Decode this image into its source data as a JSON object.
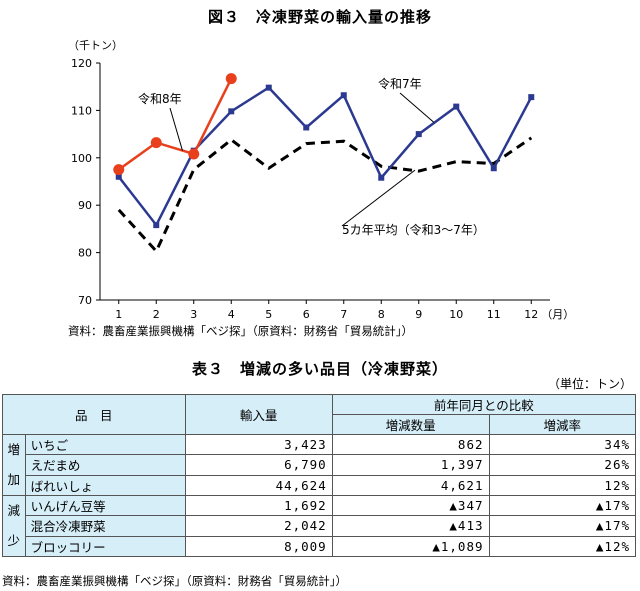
{
  "figure": {
    "title": "図３　冷凍野菜の輸入量の推移",
    "unit": "（千トン）",
    "source": "資料：農畜産業振興機構「ベジ探」（原資料：財務省「貿易統計」）"
  },
  "chart_data": {
    "type": "line",
    "x": [
      1,
      2,
      3,
      4,
      5,
      6,
      7,
      8,
      9,
      10,
      11,
      12
    ],
    "x_suffix": "（月）",
    "ylim": [
      70,
      120
    ],
    "yticks": [
      70,
      80,
      90,
      100,
      110,
      120
    ],
    "series": [
      {
        "name": "令和8年",
        "color": "#e8401c",
        "style": "solid-dots",
        "values": [
          97.5,
          103.2,
          100.8,
          116.7,
          null,
          null,
          null,
          null,
          null,
          null,
          null,
          null
        ]
      },
      {
        "name": "令和7年",
        "color": "#2b3990",
        "style": "solid-squares",
        "values": [
          96.0,
          85.8,
          101.5,
          109.8,
          114.8,
          106.4,
          113.2,
          95.8,
          105.0,
          110.8,
          97.8,
          112.8
        ]
      },
      {
        "name": "5カ年平均（令和3～7年）",
        "color": "#000000",
        "style": "dashed",
        "values": [
          89.0,
          80.3,
          97.5,
          103.8,
          97.8,
          103.0,
          103.5,
          98.2,
          97.2,
          99.2,
          98.8,
          104.2
        ]
      }
    ]
  },
  "table": {
    "title": "表３　増減の多い品目（冷凍野菜）",
    "unit": "（単位：トン）",
    "headers": {
      "item": "品　目",
      "imports": "輸入量",
      "compare": "前年同月との比較",
      "change_qty": "増減数量",
      "change_rate": "増減率"
    },
    "groups": {
      "increase": [
        "増",
        "加"
      ],
      "decrease": [
        "減",
        "少"
      ]
    },
    "rows": [
      {
        "item": "いちご",
        "imports": "3,423",
        "change": "862",
        "rate": "34%"
      },
      {
        "item": "えだまめ",
        "imports": "6,790",
        "change": "1,397",
        "rate": "26%"
      },
      {
        "item": "ばれいしょ",
        "imports": "44,624",
        "change": "4,621",
        "rate": "12%"
      },
      {
        "item": "いんげん豆等",
        "imports": "1,692",
        "change": "▲347",
        "rate": "▲17%"
      },
      {
        "item": "混合冷凍野菜",
        "imports": "2,042",
        "change": "▲413",
        "rate": "▲17%"
      },
      {
        "item": "ブロッコリー",
        "imports": "8,009",
        "change": "▲1,089",
        "rate": "▲12%"
      }
    ],
    "source": "資料：農畜産業振興機構「ベジ探」（原資料：財務省「貿易統計」）"
  }
}
